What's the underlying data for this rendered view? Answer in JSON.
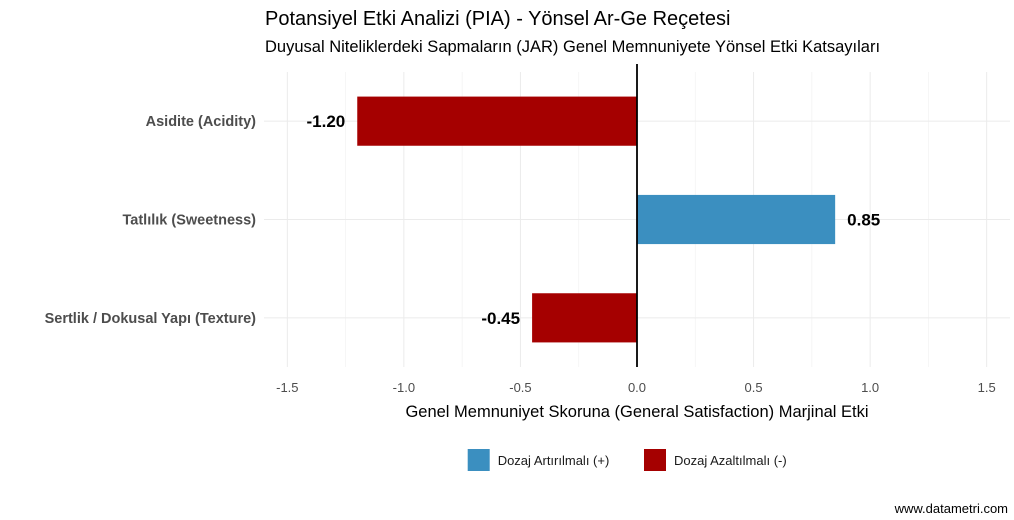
{
  "chart_data": {
    "type": "bar",
    "orientation": "horizontal",
    "title": "Potansiyel Etki Analizi (PIA) - Yönsel Ar-Ge Reçetesi",
    "subtitle": "Duyusal Niteliklerdeki Sapmaların (JAR) Genel Memnuniyete Yönsel Etki Katsayıları",
    "xlabel": "Genel Memnuniyet Skoruna (General Satisfaction) Marjinal Etki",
    "ylabel": "",
    "xlim": [
      -1.6,
      1.6
    ],
    "xticks": [
      -1.5,
      -1.0,
      -0.5,
      0.0,
      0.5,
      1.0,
      1.5
    ],
    "xtick_labels": [
      "-1.5",
      "-1.0",
      "-0.5",
      "0.0",
      "0.5",
      "1.0",
      "1.5"
    ],
    "categories": [
      "Asidite (Acidity)",
      "Tatlılık (Sweetness)",
      "Sertlik / Dokusal Yapı (Texture)"
    ],
    "values": [
      -1.2,
      0.85,
      -0.45
    ],
    "value_labels": [
      "-1.20",
      "0.85",
      "-0.45"
    ],
    "bar_groups": [
      "Dozaj Azaltılmalı (-)",
      "Dozaj Artırılmalı (+)",
      "Dozaj Azaltılmalı (-)"
    ],
    "legend": [
      {
        "label": "Dozaj Artırılmalı (+)",
        "color": "#3b8fc0"
      },
      {
        "label": "Dozaj Azaltılmalı (-)",
        "color": "#a50000"
      }
    ],
    "legend_position": "bottom",
    "grid": true,
    "caption": "www.datametri.com"
  }
}
